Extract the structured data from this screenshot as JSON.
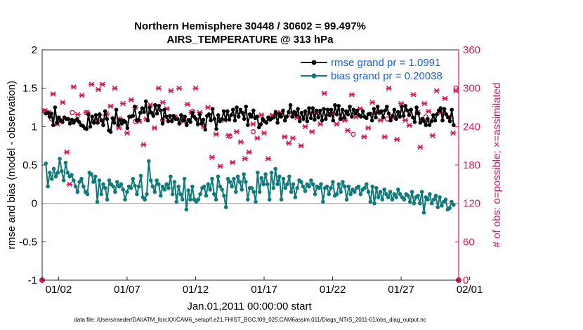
{
  "chart_data": {
    "type": "line",
    "title": "Northern Hemisphere 30448 / 30602 = 99.497%",
    "subtitle": "AIRS_TEMPERATURE @ 313 hPa",
    "xlabel": "Jan.01,2011 00:00:00 start",
    "ylabel_left": "rmse and bias (model - observation)",
    "ylabel_right": "# of obs: o=possible; ×=assimilated",
    "footnote": "data file: /Users/raeder/DAI/ATM_forcXX/CAM6_setup/f.e21.FHIST_BGC.f09_025.CAM6assim.011/Diags_NTrS_2011-01/obs_diag_output.nc",
    "x_ticks": [
      "01/02",
      "01/07",
      "01/12",
      "01/17",
      "01/22",
      "01/27",
      "02/01"
    ],
    "y_left_ticks": [
      "-1",
      "-0.5",
      "0",
      "0.5",
      "1",
      "1.5",
      "2"
    ],
    "y_right_ticks": [
      "0",
      "60",
      "120",
      "180",
      "240",
      "300",
      "360"
    ],
    "ylim_left": [
      -1,
      2
    ],
    "ylim_right": [
      0,
      360
    ],
    "xlim_days": [
      0.8,
      31.2
    ],
    "zero_line": 0,
    "legend": [
      {
        "label": "rmse grand pr = 1.0991",
        "color": "#000000"
      },
      {
        "label": "bias grand pr = 0.20038",
        "color": "#0f7a7a"
      }
    ],
    "colors": {
      "rmse": "#000000",
      "bias": "#0f7a7a",
      "obs": "#d6175a",
      "zero": "#c0a0a0"
    },
    "obs_count_endpoints": [
      {
        "x": 0.8,
        "y": 0
      },
      {
        "x": 31.2,
        "y": 0
      }
    ],
    "rmse": [
      1.17,
      1.18,
      1.13,
      1.17,
      1.02,
      1.25,
      1.05,
      1.12,
      1.08,
      1.06,
      1.12,
      1.1,
      1.1,
      1.04,
      1.09,
      1.05,
      1.08,
      1.1,
      1.06,
      1.02,
      1.01,
      0.98,
      0.97,
      1.16,
      1.0,
      1.13,
      1.05,
      1.15,
      1.05,
      1.16,
      1.08,
      1.02,
      1.2,
      1.1,
      0.95,
      0.93,
      1.11,
      1.05,
      1.22,
      1.02,
      1.09,
      1.04,
      1.08,
      1.06,
      0.98,
      1.13,
      1.13,
      1.14,
      1.26,
      1.08,
      1.09,
      1.18,
      1.24,
      1.19,
      1.33,
      1.08,
      1.25,
      1.18,
      1.14,
      1.28,
      1.17,
      1.27,
      1.21,
      1.04,
      1.22,
      1.13,
      1.07,
      1.14,
      1.07,
      1.14,
      1.1,
      1.1,
      1.04,
      1.15,
      1.08,
      1.13,
      1.02,
      1.09,
      1.06,
      1.18,
      1.13,
      1.1,
      1.03,
      1.16,
      1.04,
      1.09,
      0.96,
      1.14,
      1.16,
      1.08,
      1.23,
      1.1,
      0.97,
      1.15,
      1.07,
      1.1,
      1.2,
      1.09,
      1.2,
      1.09,
      1.15,
      1.22,
      1.08,
      1.25,
      1.13,
      1.22,
      1.18,
      1.1,
      1.26,
      1.02,
      1.16,
      1.13,
      1.21,
      1.11,
      1.13,
      0.99,
      1.03,
      1.1,
      1.07,
      1.05,
      1.12,
      1.09,
      1.11,
      1.12,
      1.19,
      1.05,
      1.16,
      1.13,
      1.21,
      1.08,
      1.13,
      1.19,
      1.28,
      1.13,
      1.19,
      1.15,
      1.23,
      1.07,
      1.18,
      1.1,
      1.2,
      1.07,
      1.24,
      1.11,
      1.24,
      1.09,
      1.21,
      1.12,
      1.21,
      1.08,
      1.23,
      1.1,
      1.22,
      1.15,
      1.22,
      1.08,
      1.28,
      1.16,
      1.27,
      1.1,
      1.22,
      1.12,
      1.2,
      1.16,
      1.26,
      1.13,
      1.22,
      1.17,
      1.21,
      1.15,
      1.13,
      1.2,
      1.13,
      1.11,
      1.16,
      1.17,
      1.08,
      1.23,
      1.12,
      1.26,
      1.18,
      1.2,
      1.12,
      1.21,
      1.26,
      1.17,
      1.08,
      1.14,
      1.22,
      1.1,
      1.19,
      1.13,
      1.26,
      1.14,
      1.27,
      1.21,
      1.15,
      1.22,
      1.12,
      1.06,
      1.25,
      1.17,
      1.05,
      1.1,
      1.07,
      1.02,
      1.1,
      1.02,
      1.07,
      1.15,
      1.08,
      1.16,
      1.21,
      1.24,
      1.08,
      1.23,
      1.16,
      1.12,
      1.07,
      1.22,
      1.02
    ],
    "bias": [
      0.52,
      0.22,
      0.4,
      0.32,
      0.45,
      0.35,
      0.4,
      0.58,
      0.42,
      0.3,
      0.53,
      0.4,
      0.35,
      0.37,
      0.3,
      0.22,
      0.15,
      0.28,
      0.32,
      0.22,
      0.15,
      0.12,
      0.4,
      0.38,
      0.28,
      0.35,
      0.02,
      0.3,
      0.12,
      0.25,
      0.2,
      0.05,
      0.3,
      0.25,
      0.22,
      0.15,
      0.28,
      0.22,
      0.25,
      0.18,
      0.05,
      0.15,
      0.22,
      0.2,
      0.32,
      0.23,
      0.12,
      0.22,
      0.36,
      0.08,
      0.05,
      0.12,
      0.55,
      0.3,
      0.22,
      0.15,
      0.3,
      0.25,
      0.1,
      0.22,
      0.18,
      0.25,
      0.2,
      0.35,
      0.12,
      0.28,
      0.02,
      0.22,
      0.12,
      0.05,
      0.32,
      -0.08,
      0.17,
      0.05,
      0.22,
      0.05,
      0.02,
      0.05,
      0.12,
      0.2,
      0.22,
      0.1,
      0.25,
      0.18,
      0.32,
      0.12,
      0.05,
      0.35,
      0.22,
      0.18,
      0.1,
      -0.05,
      0.32,
      0.28,
      0.22,
      0.32,
      0.15,
      0.35,
      0.28,
      0.18,
      0.38,
      0.28,
      0.05,
      0.2,
      0.2,
      0.15,
      0.02,
      0.4,
      0.15,
      0.33,
      0.25,
      0.38,
      0.25,
      0.05,
      0.4,
      0.2,
      0.45,
      0.25,
      0.35,
      0.05,
      0.32,
      0.2,
      0.25,
      0.35,
      0.15,
      0.25,
      0.08,
      0.2,
      0.3,
      0.28,
      0.22,
      0.16,
      0.25,
      0.22,
      0.3,
      0.25,
      0.12,
      0.22,
      0.2,
      0.25,
      0.02,
      0.2,
      0.22,
      0.12,
      0.2,
      0.28,
      0.1,
      0.12,
      0.25,
      0.15,
      0.28,
      0.22,
      0.05,
      0.22,
      0.12,
      0.18,
      0.15,
      0.2,
      0.22,
      0.12,
      0.18,
      0.2,
      0.25,
      0.15,
      0.02,
      0.22,
      0.0,
      0.2,
      0.08,
      0.15,
      0.05,
      0.18,
      0.12,
      0.08,
      0.15,
      0.05,
      0.12,
      0.08,
      0.18,
      0.12,
      0.08,
      0.05,
      0.12,
      0.1,
      0.02,
      0.15,
      0.0,
      0.08,
      0.1,
      0.0,
      0.15,
      -0.12,
      0.08,
      0.05,
      0.12,
      0.0,
      0.05,
      0.1,
      -0.05,
      0.08,
      -0.03,
      0.02,
      0.05,
      -0.08,
      -0.06,
      0.02,
      -0.02
    ],
    "obs_possible": [
      {
        "x": 1.0,
        "y": 264
      },
      {
        "x": 1.2,
        "y": 262
      },
      {
        "x": 1.5,
        "y": 252
      },
      {
        "x": 2.1,
        "y": 250
      },
      {
        "x": 3.0,
        "y": 262
      },
      {
        "x": 4.0,
        "y": 262
      },
      {
        "x": 5.2,
        "y": 255
      },
      {
        "x": 6.5,
        "y": 252
      },
      {
        "x": 7.6,
        "y": 248
      },
      {
        "x": 9.6,
        "y": 250
      },
      {
        "x": 11.8,
        "y": 264
      },
      {
        "x": 14.5,
        "y": 225
      },
      {
        "x": 16.2,
        "y": 232
      },
      {
        "x": 19.0,
        "y": 258
      },
      {
        "x": 23.5,
        "y": 228
      },
      {
        "x": 26.0,
        "y": 252
      },
      {
        "x": 28.8,
        "y": 255
      },
      {
        "x": 31.0,
        "y": 300
      }
    ],
    "obs_assimilated": [
      {
        "x": 1.0,
        "y": 265
      },
      {
        "x": 1.3,
        "y": 262
      },
      {
        "x": 1.6,
        "y": 291
      },
      {
        "x": 1.9,
        "y": 244
      },
      {
        "x": 2.3,
        "y": 278
      },
      {
        "x": 2.6,
        "y": 200
      },
      {
        "x": 2.8,
        "y": 150
      },
      {
        "x": 3.1,
        "y": 302
      },
      {
        "x": 3.4,
        "y": 259
      },
      {
        "x": 3.7,
        "y": 289
      },
      {
        "x": 4.1,
        "y": 262
      },
      {
        "x": 4.4,
        "y": 306
      },
      {
        "x": 4.6,
        "y": 248
      },
      {
        "x": 4.9,
        "y": 298
      },
      {
        "x": 5.2,
        "y": 306
      },
      {
        "x": 5.5,
        "y": 260
      },
      {
        "x": 5.8,
        "y": 272
      },
      {
        "x": 6.1,
        "y": 300
      },
      {
        "x": 6.4,
        "y": 238
      },
      {
        "x": 6.7,
        "y": 276
      },
      {
        "x": 7.0,
        "y": 230
      },
      {
        "x": 7.3,
        "y": 282
      },
      {
        "x": 7.6,
        "y": 270
      },
      {
        "x": 7.9,
        "y": 248
      },
      {
        "x": 8.2,
        "y": 212
      },
      {
        "x": 8.4,
        "y": 252
      },
      {
        "x": 8.7,
        "y": 274
      },
      {
        "x": 9.0,
        "y": 238
      },
      {
        "x": 9.3,
        "y": 300
      },
      {
        "x": 9.6,
        "y": 278
      },
      {
        "x": 9.9,
        "y": 268
      },
      {
        "x": 10.2,
        "y": 296
      },
      {
        "x": 10.5,
        "y": 255
      },
      {
        "x": 10.8,
        "y": 300
      },
      {
        "x": 11.1,
        "y": 248
      },
      {
        "x": 11.4,
        "y": 275
      },
      {
        "x": 11.7,
        "y": 262
      },
      {
        "x": 12.0,
        "y": 300
      },
      {
        "x": 12.3,
        "y": 262
      },
      {
        "x": 12.6,
        "y": 240
      },
      {
        "x": 12.9,
        "y": 270
      },
      {
        "x": 13.2,
        "y": 192
      },
      {
        "x": 13.5,
        "y": 228
      },
      {
        "x": 13.8,
        "y": 178
      },
      {
        "x": 14.1,
        "y": 250
      },
      {
        "x": 14.4,
        "y": 226
      },
      {
        "x": 14.7,
        "y": 184
      },
      {
        "x": 15.0,
        "y": 232
      },
      {
        "x": 15.3,
        "y": 216
      },
      {
        "x": 15.6,
        "y": 190
      },
      {
        "x": 15.9,
        "y": 200
      },
      {
        "x": 16.2,
        "y": 244
      },
      {
        "x": 16.5,
        "y": 222
      },
      {
        "x": 16.8,
        "y": 258
      },
      {
        "x": 17.0,
        "y": 230
      },
      {
        "x": 17.3,
        "y": 190
      },
      {
        "x": 17.6,
        "y": 258
      },
      {
        "x": 17.9,
        "y": 260
      },
      {
        "x": 18.2,
        "y": 262
      },
      {
        "x": 18.5,
        "y": 224
      },
      {
        "x": 18.8,
        "y": 214
      },
      {
        "x": 19.1,
        "y": 222
      },
      {
        "x": 19.4,
        "y": 254
      },
      {
        "x": 19.7,
        "y": 210
      },
      {
        "x": 20.0,
        "y": 240
      },
      {
        "x": 20.3,
        "y": 260
      },
      {
        "x": 20.5,
        "y": 232
      },
      {
        "x": 20.8,
        "y": 262
      },
      {
        "x": 21.1,
        "y": 244
      },
      {
        "x": 21.4,
        "y": 292
      },
      {
        "x": 21.7,
        "y": 258
      },
      {
        "x": 22.0,
        "y": 262
      },
      {
        "x": 22.3,
        "y": 244
      },
      {
        "x": 22.6,
        "y": 252
      },
      {
        "x": 22.9,
        "y": 250
      },
      {
        "x": 23.1,
        "y": 234
      },
      {
        "x": 23.4,
        "y": 290
      },
      {
        "x": 23.7,
        "y": 255
      },
      {
        "x": 24.0,
        "y": 268
      },
      {
        "x": 24.3,
        "y": 224
      },
      {
        "x": 24.6,
        "y": 238
      },
      {
        "x": 24.9,
        "y": 278
      },
      {
        "x": 25.2,
        "y": 262
      },
      {
        "x": 25.5,
        "y": 250
      },
      {
        "x": 25.8,
        "y": 224
      },
      {
        "x": 26.1,
        "y": 300
      },
      {
        "x": 26.4,
        "y": 254
      },
      {
        "x": 26.7,
        "y": 220
      },
      {
        "x": 27.0,
        "y": 276
      },
      {
        "x": 27.3,
        "y": 250
      },
      {
        "x": 27.6,
        "y": 242
      },
      {
        "x": 27.9,
        "y": 290
      },
      {
        "x": 28.2,
        "y": 262
      },
      {
        "x": 28.4,
        "y": 208
      },
      {
        "x": 28.7,
        "y": 276
      },
      {
        "x": 29.0,
        "y": 264
      },
      {
        "x": 29.3,
        "y": 226
      },
      {
        "x": 29.6,
        "y": 296
      },
      {
        "x": 29.9,
        "y": 262
      },
      {
        "x": 30.2,
        "y": 284
      },
      {
        "x": 30.5,
        "y": 256
      },
      {
        "x": 30.8,
        "y": 230
      },
      {
        "x": 31.0,
        "y": 296
      }
    ]
  }
}
